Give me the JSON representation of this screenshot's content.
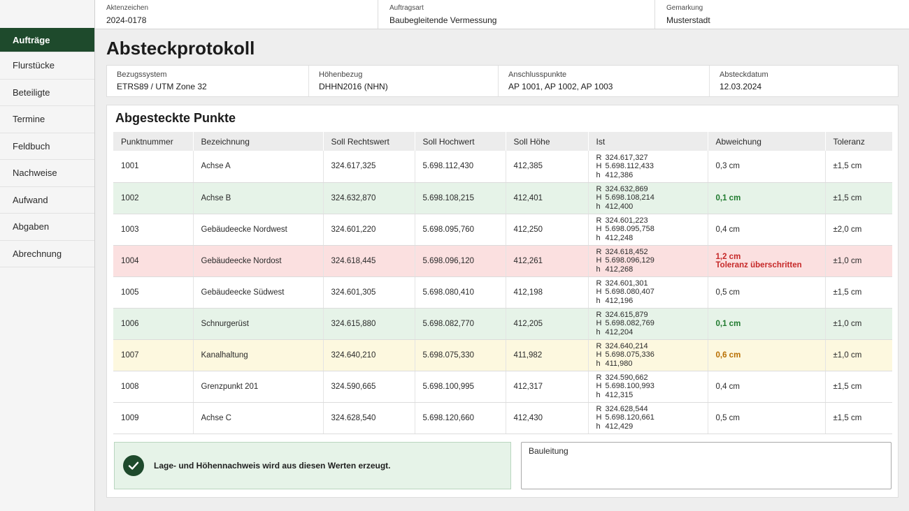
{
  "sidebar": {
    "items": [
      {
        "label": "Aufträge",
        "active": true
      },
      {
        "label": "Flurstücke"
      },
      {
        "label": "Beteiligte"
      },
      {
        "label": "Termine"
      },
      {
        "label": "Feldbuch"
      },
      {
        "label": "Nachweise"
      },
      {
        "label": "Aufwand"
      },
      {
        "label": "Abgaben"
      },
      {
        "label": "Abrechnung"
      }
    ]
  },
  "header": {
    "aktenzeichen_label": "Aktenzeichen",
    "aktenzeichen": "2024-0178",
    "auftragsart_label": "Auftragsart",
    "auftragsart": "Baubegleitende Vermessung",
    "gemarkung_label": "Gemarkung",
    "gemarkung": "Musterstadt"
  },
  "page_title": "Absteckprotokoll",
  "reference": {
    "bezug_label": "Bezugssystem",
    "bezug": "ETRS89 / UTM Zone 32",
    "hoehe_label": "Höhenbezug",
    "hoehe": "DHHN2016 (NHN)",
    "anschluss_label": "Anschlusspunkte",
    "anschluss": "AP 1001, AP 1002, AP 1003",
    "datum_label": "Absteckdatum",
    "datum": "12.03.2024"
  },
  "section_title": "Abgesteckte Punkte",
  "table": {
    "headers": [
      "Punktnummer",
      "Bezeichnung",
      "Soll Rechtswert",
      "Soll Hochwert",
      "Soll Höhe",
      "Ist",
      "Abweichung",
      "Toleranz"
    ],
    "ist_keys": {
      "r": "R",
      "h": "H",
      "z": "h"
    },
    "rows": [
      {
        "nr": "1001",
        "bez": "Achse A",
        "rw": "324.617,325",
        "hw": "5.698.112,430",
        "hoehe": "412,385",
        "ist_r": "324.617,327",
        "ist_h": "5.698.112,433",
        "ist_z": "412,386",
        "abw": "0,3 cm",
        "note": "",
        "tol": "±1,5 cm",
        "status": "normal"
      },
      {
        "nr": "1002",
        "bez": "Achse B",
        "rw": "324.632,870",
        "hw": "5.698.108,215",
        "hoehe": "412,401",
        "ist_r": "324.632,869",
        "ist_h": "5.698.108,214",
        "ist_z": "412,400",
        "abw": "0,1 cm",
        "note": "",
        "tol": "±1,5 cm",
        "status": "green"
      },
      {
        "nr": "1003",
        "bez": "Gebäudeecke Nordwest",
        "rw": "324.601,220",
        "hw": "5.698.095,760",
        "hoehe": "412,250",
        "ist_r": "324.601,223",
        "ist_h": "5.698.095,758",
        "ist_z": "412,248",
        "abw": "0,4 cm",
        "note": "",
        "tol": "±2,0 cm",
        "status": "normal"
      },
      {
        "nr": "1004",
        "bez": "Gebäudeecke Nordost",
        "rw": "324.618,445",
        "hw": "5.698.096,120",
        "hoehe": "412,261",
        "ist_r": "324.618,452",
        "ist_h": "5.698.096,129",
        "ist_z": "412,268",
        "abw": "1,2 cm",
        "note": "Toleranz überschritten",
        "tol": "±1,0 cm",
        "status": "red"
      },
      {
        "nr": "1005",
        "bez": "Gebäudeecke Südwest",
        "rw": "324.601,305",
        "hw": "5.698.080,410",
        "hoehe": "412,198",
        "ist_r": "324.601,301",
        "ist_h": "5.698.080,407",
        "ist_z": "412,196",
        "abw": "0,5 cm",
        "note": "",
        "tol": "±1,5 cm",
        "status": "normal"
      },
      {
        "nr": "1006",
        "bez": "Schnurgerüst",
        "rw": "324.615,880",
        "hw": "5.698.082,770",
        "hoehe": "412,205",
        "ist_r": "324.615,879",
        "ist_h": "5.698.082,769",
        "ist_z": "412,204",
        "abw": "0,1 cm",
        "note": "",
        "tol": "±1,0 cm",
        "status": "green"
      },
      {
        "nr": "1007",
        "bez": "Kanalhaltung",
        "rw": "324.640,210",
        "hw": "5.698.075,330",
        "hoehe": "411,982",
        "ist_r": "324.640,214",
        "ist_h": "5.698.075,336",
        "ist_z": "411,980",
        "abw": "0,6 cm",
        "note": "",
        "tol": "±1,0 cm",
        "status": "yellow"
      },
      {
        "nr": "1008",
        "bez": "Grenzpunkt 201",
        "rw": "324.590,665",
        "hw": "5.698.100,995",
        "hoehe": "412,317",
        "ist_r": "324.590,662",
        "ist_h": "5.698.100,993",
        "ist_z": "412,315",
        "abw": "0,4 cm",
        "note": "",
        "tol": "±1,5 cm",
        "status": "normal"
      },
      {
        "nr": "1009",
        "bez": "Achse C",
        "rw": "324.628,540",
        "hw": "5.698.120,660",
        "hoehe": "412,430",
        "ist_r": "324.628,544",
        "ist_h": "5.698.120,661",
        "ist_z": "412,429",
        "abw": "0,5 cm",
        "note": "",
        "tol": "±1,5 cm",
        "status": "normal"
      }
    ]
  },
  "confirm_text": "Lage- und Höhennachweis wird aus diesen Werten erzeugt.",
  "sign_label": "Bauleitung",
  "colors": {
    "accent": "#1e4a2c",
    "ok": "#e6f3e8",
    "error": "#fbe0e0",
    "warn": "#fdf8df"
  }
}
